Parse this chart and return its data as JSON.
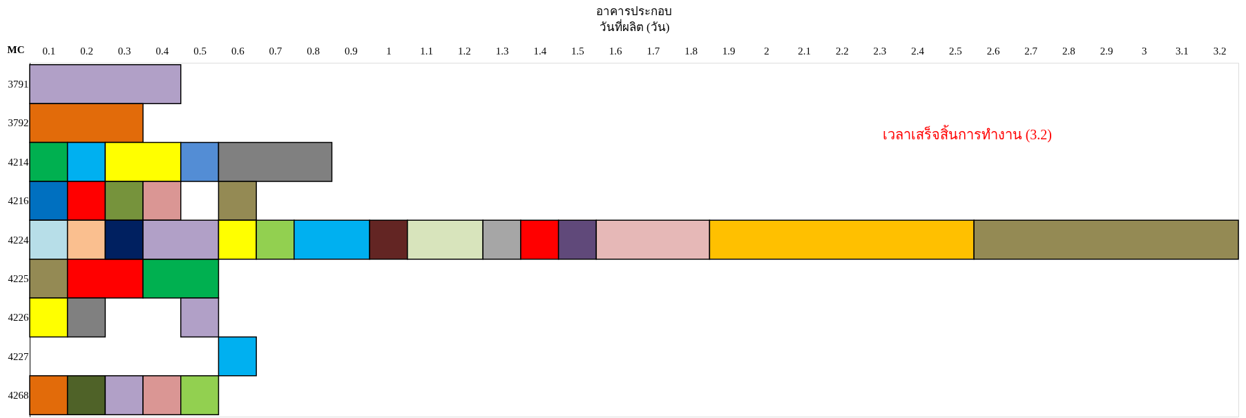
{
  "chart_data": {
    "type": "bar",
    "orientation": "horizontal",
    "title": "อาคารประกอบ",
    "xlabel": "วันที่ผลิต (วัน)",
    "ylabel": "MC",
    "categories": [
      "3791",
      "3792",
      "4214",
      "4216",
      "4224",
      "4225",
      "4226",
      "4227",
      "4268"
    ],
    "xlim": [
      0,
      3.2
    ],
    "xticks": [
      {
        "value": 0.05,
        "label": "0.1"
      },
      {
        "value": 0.15,
        "label": "0.2"
      },
      {
        "value": 0.25,
        "label": "0.3"
      },
      {
        "value": 0.35,
        "label": "0.4"
      },
      {
        "value": 0.45,
        "label": "0.5"
      },
      {
        "value": 0.55,
        "label": "0.6"
      },
      {
        "value": 0.65,
        "label": "0.7"
      },
      {
        "value": 0.75,
        "label": "0.8"
      },
      {
        "value": 0.85,
        "label": "0.9"
      },
      {
        "value": 0.95,
        "label": "1"
      },
      {
        "value": 1.05,
        "label": "1.1"
      },
      {
        "value": 1.15,
        "label": "1.2"
      },
      {
        "value": 1.25,
        "label": "1.3"
      },
      {
        "value": 1.35,
        "label": "1.4"
      },
      {
        "value": 1.45,
        "label": "1.5"
      },
      {
        "value": 1.55,
        "label": "1.6"
      },
      {
        "value": 1.65,
        "label": "1.7"
      },
      {
        "value": 1.75,
        "label": "1.8"
      },
      {
        "value": 1.85,
        "label": "1.9"
      },
      {
        "value": 1.95,
        "label": "2"
      },
      {
        "value": 2.05,
        "label": "2.1"
      },
      {
        "value": 2.15,
        "label": "2.2"
      },
      {
        "value": 2.25,
        "label": "2.3"
      },
      {
        "value": 2.35,
        "label": "2.4"
      },
      {
        "value": 2.45,
        "label": "2.5"
      },
      {
        "value": 2.55,
        "label": "2.6"
      },
      {
        "value": 2.65,
        "label": "2.7"
      },
      {
        "value": 2.75,
        "label": "2.8"
      },
      {
        "value": 2.85,
        "label": "2.9"
      },
      {
        "value": 2.95,
        "label": "3"
      },
      {
        "value": 3.05,
        "label": "3.1"
      },
      {
        "value": 3.15,
        "label": "3.2"
      }
    ],
    "grid": false,
    "annotations": [
      "เวลาเสร็จสิ้นการทำงาน (3.2)"
    ],
    "series": [
      {
        "base": [
          0,
          0,
          0,
          0,
          0,
          0,
          0,
          0.5,
          0
        ],
        "values": [
          0.4,
          0.3,
          0.1,
          0.1,
          0.1,
          0.1,
          0.1,
          0.1,
          0.1
        ],
        "colors": [
          "#b1a0c7",
          "#e26b0a",
          "#00b050",
          "#0070c0",
          "#b7dee8",
          "#948a54",
          "#ffff00",
          "#00b0f0",
          "#e26b0a"
        ]
      },
      {
        "base": [
          null,
          null,
          0.1,
          0.1,
          0.1,
          0.1,
          0.1,
          null,
          0.1
        ],
        "values": [
          null,
          null,
          0.1,
          0.1,
          0.1,
          0.2,
          0.1,
          null,
          0.1
        ],
        "colors": [
          null,
          null,
          "#00b0f0",
          "#ff0000",
          "#fabf8f",
          "#ff0000",
          "#808080",
          null,
          "#4f6228"
        ]
      },
      {
        "base": [
          null,
          null,
          0.2,
          0.2,
          0.2,
          0.3,
          0.4,
          null,
          0.2
        ],
        "values": [
          null,
          null,
          0.2,
          0.1,
          0.1,
          0.2,
          0.1,
          null,
          0.1
        ],
        "colors": [
          null,
          null,
          "#ffff00",
          "#76933c",
          "#002060",
          "#00b050",
          "#b1a0c7",
          null,
          "#b1a0c7"
        ]
      },
      {
        "base": [
          null,
          null,
          0.4,
          0.3,
          0.3,
          null,
          null,
          null,
          0.3
        ],
        "values": [
          null,
          null,
          0.1,
          0.1,
          0.2,
          null,
          null,
          null,
          0.1
        ],
        "colors": [
          null,
          null,
          "#538dd5",
          "#da9694",
          "#b1a0c7",
          null,
          null,
          null,
          "#da9694"
        ]
      },
      {
        "base": [
          null,
          null,
          0.5,
          0.5,
          0.5,
          null,
          null,
          null,
          0.4
        ],
        "values": [
          null,
          null,
          0.3,
          0.1,
          0.1,
          null,
          null,
          null,
          0.1
        ],
        "colors": [
          null,
          null,
          "#808080",
          "#948a54",
          "#ffff00",
          null,
          null,
          null,
          "#92d050"
        ]
      },
      {
        "base": [
          null,
          null,
          null,
          null,
          0.6,
          null,
          null,
          null,
          null
        ],
        "values": [
          null,
          null,
          null,
          null,
          0.1,
          null,
          null,
          null,
          null
        ],
        "colors": [
          null,
          null,
          null,
          null,
          "#92d050",
          null,
          null,
          null,
          null
        ]
      },
      {
        "base": [
          null,
          null,
          null,
          null,
          0.7,
          null,
          null,
          null,
          null
        ],
        "values": [
          null,
          null,
          null,
          null,
          0.2,
          null,
          null,
          null,
          null
        ],
        "colors": [
          null,
          null,
          null,
          null,
          "#00b0f0",
          null,
          null,
          null,
          null
        ]
      },
      {
        "base": [
          null,
          null,
          null,
          null,
          0.9,
          null,
          null,
          null,
          null
        ],
        "values": [
          null,
          null,
          null,
          null,
          0.1,
          null,
          null,
          null,
          null
        ],
        "colors": [
          null,
          null,
          null,
          null,
          "#632523",
          null,
          null,
          null,
          null
        ]
      },
      {
        "base": [
          null,
          null,
          null,
          null,
          1.0,
          null,
          null,
          null,
          null
        ],
        "values": [
          null,
          null,
          null,
          null,
          0.2,
          null,
          null,
          null,
          null
        ],
        "colors": [
          null,
          null,
          null,
          null,
          "#d8e4bc",
          null,
          null,
          null,
          null
        ]
      },
      {
        "base": [
          null,
          null,
          null,
          null,
          1.2,
          null,
          null,
          null,
          null
        ],
        "values": [
          null,
          null,
          null,
          null,
          0.1,
          null,
          null,
          null,
          null
        ],
        "colors": [
          null,
          null,
          null,
          null,
          "#a6a6a6",
          null,
          null,
          null,
          null
        ]
      },
      {
        "base": [
          null,
          null,
          null,
          null,
          1.3,
          null,
          null,
          null,
          null
        ],
        "values": [
          null,
          null,
          null,
          null,
          0.1,
          null,
          null,
          null,
          null
        ],
        "colors": [
          null,
          null,
          null,
          null,
          "#ff0000",
          null,
          null,
          null,
          null
        ]
      },
      {
        "base": [
          null,
          null,
          null,
          null,
          1.4,
          null,
          null,
          null,
          null
        ],
        "values": [
          null,
          null,
          null,
          null,
          0.1,
          null,
          null,
          null,
          null
        ],
        "colors": [
          null,
          null,
          null,
          null,
          "#60497a",
          null,
          null,
          null,
          null
        ]
      },
      {
        "base": [
          null,
          null,
          null,
          null,
          1.5,
          null,
          null,
          null,
          null
        ],
        "values": [
          null,
          null,
          null,
          null,
          0.3,
          null,
          null,
          null,
          null
        ],
        "colors": [
          null,
          null,
          null,
          null,
          "#e6b8b7",
          null,
          null,
          null,
          null
        ]
      },
      {
        "base": [
          null,
          null,
          null,
          null,
          1.8,
          null,
          null,
          null,
          null
        ],
        "values": [
          null,
          null,
          null,
          null,
          0.7,
          null,
          null,
          null,
          null
        ],
        "colors": [
          null,
          null,
          null,
          null,
          "#ffc000",
          null,
          null,
          null,
          null
        ]
      },
      {
        "base": [
          null,
          null,
          null,
          null,
          2.5,
          null,
          null,
          null,
          null
        ],
        "values": [
          null,
          null,
          null,
          null,
          0.7,
          null,
          null,
          null,
          null
        ],
        "colors": [
          null,
          null,
          null,
          null,
          "#948a54",
          null,
          null,
          null,
          null
        ]
      }
    ]
  }
}
